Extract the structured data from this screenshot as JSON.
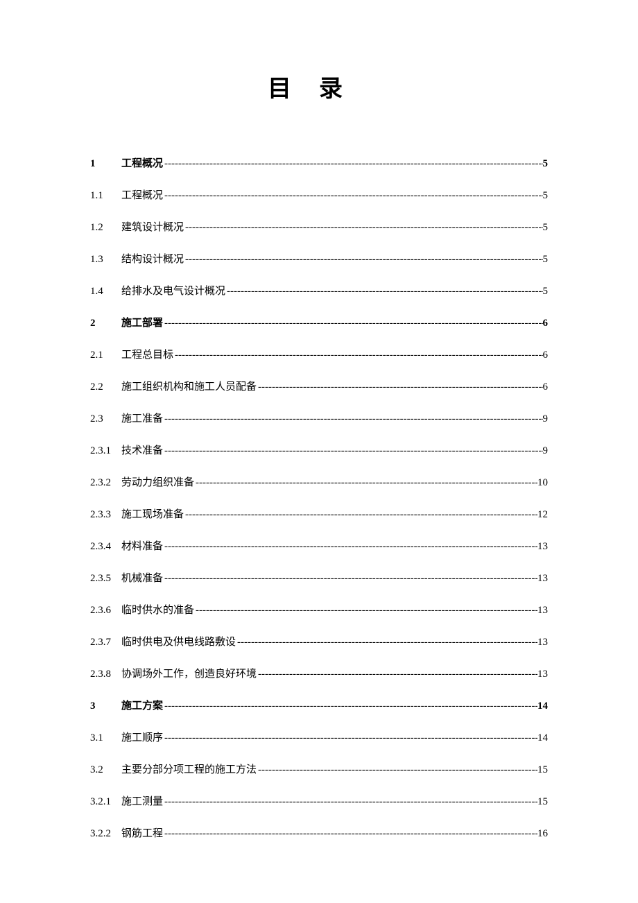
{
  "title": "目录",
  "font_family": "SimSun",
  "page_bg": "#ffffff",
  "text_color": "#000000",
  "title_fontsize": 34,
  "row_fontsize": 15,
  "row_spacing": 25,
  "leader_char": "-",
  "entries": [
    {
      "num": "1",
      "label": "工程概况",
      "page": "5",
      "bold": true
    },
    {
      "num": "1.1",
      "label": "工程概况",
      "page": "5",
      "bold": false
    },
    {
      "num": "1.2",
      "label": "建筑设计概况",
      "page": "5",
      "bold": false
    },
    {
      "num": "1.3",
      "label": "结构设计概况",
      "page": "5",
      "bold": false
    },
    {
      "num": "1.4",
      "label": "给排水及电气设计概况",
      "page": "5",
      "bold": false
    },
    {
      "num": "2",
      "label": "施工部署",
      "page": "6",
      "bold": true
    },
    {
      "num": "2.1",
      "label": "工程总目标",
      "page": "6",
      "bold": false
    },
    {
      "num": "2.2",
      "label": "施工组织机构和施工人员配备",
      "page": "6",
      "bold": false
    },
    {
      "num": "2.3",
      "label": "施工准备",
      "page": "9",
      "bold": false
    },
    {
      "num": "2.3.1",
      "label": "技术准备",
      "page": "9",
      "bold": false
    },
    {
      "num": "2.3.2",
      "label": "劳动力组织准备",
      "page": "10",
      "bold": false
    },
    {
      "num": "2.3.3",
      "label": "施工现场准备",
      "page": "12",
      "bold": false
    },
    {
      "num": "2.3.4",
      "label": "材料准备",
      "page": "13",
      "bold": false
    },
    {
      "num": "2.3.5",
      "label": "机械准备",
      "page": "13",
      "bold": false
    },
    {
      "num": "2.3.6",
      "label": "临时供水的准备",
      "page": "13",
      "bold": false
    },
    {
      "num": "2.3.7",
      "label": "临时供电及供电线路敷设",
      "page": "13",
      "bold": false
    },
    {
      "num": "2.3.8",
      "label": "协调场外工作，创造良好环境",
      "page": "13",
      "bold": false
    },
    {
      "num": "3",
      "label": "施工方案",
      "page": "14",
      "bold": true
    },
    {
      "num": "3.1",
      "label": "施工顺序",
      "page": "14",
      "bold": false
    },
    {
      "num": "3.2",
      "label": "主要分部分项工程的施工方法",
      "page": "15",
      "bold": false
    },
    {
      "num": "3.2.1",
      "label": "施工测量",
      "page": "15",
      "bold": false
    },
    {
      "num": "3.2.2",
      "label": "钢筋工程",
      "page": "16",
      "bold": false
    }
  ]
}
